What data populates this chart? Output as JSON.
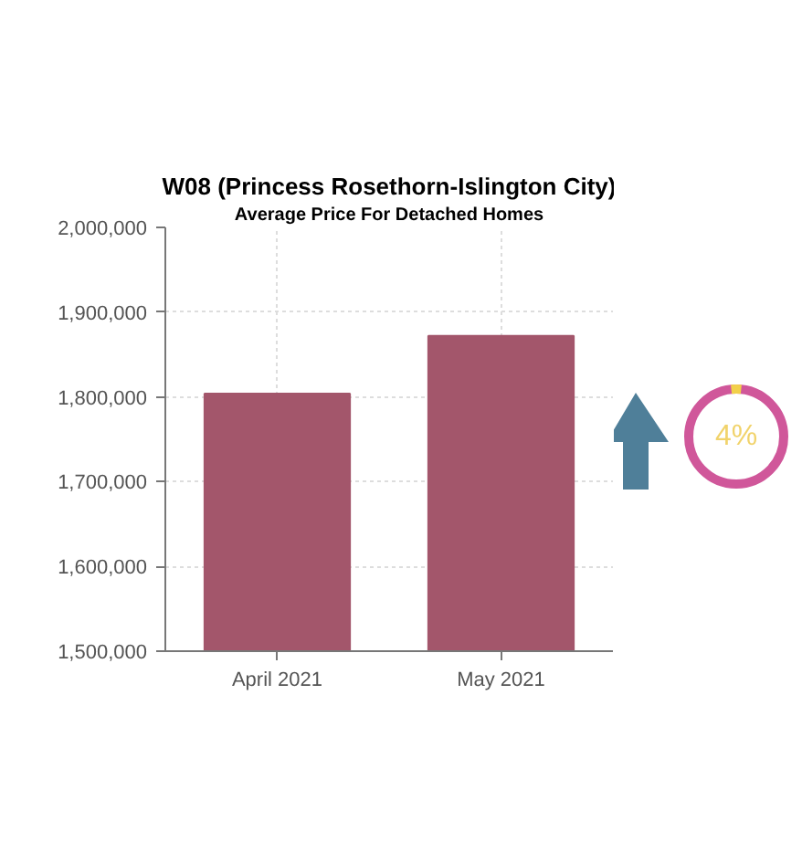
{
  "chart_data": {
    "type": "bar",
    "title": "W08 (Princess Rosethorn-Islington City)",
    "subtitle": "Average Price For Detached Homes",
    "categories": [
      "April 2021",
      "May 2021"
    ],
    "series": [
      {
        "color": "#a3566b",
        "values": [
          1804000,
          1872000
        ]
      }
    ],
    "ylim": [
      1500000,
      2000000
    ],
    "yticks": [
      {
        "value": 1500000,
        "label": "1,500,000"
      },
      {
        "value": 1600000,
        "label": "1,600,000"
      },
      {
        "value": 1700000,
        "label": "1,700,000"
      },
      {
        "value": 1800000,
        "label": "1,800,000"
      },
      {
        "value": 1900000,
        "label": "1,900,000"
      },
      {
        "value": 2000000,
        "label": "2,000,000"
      }
    ],
    "grid": true,
    "annotations": [
      "4%"
    ]
  }
}
